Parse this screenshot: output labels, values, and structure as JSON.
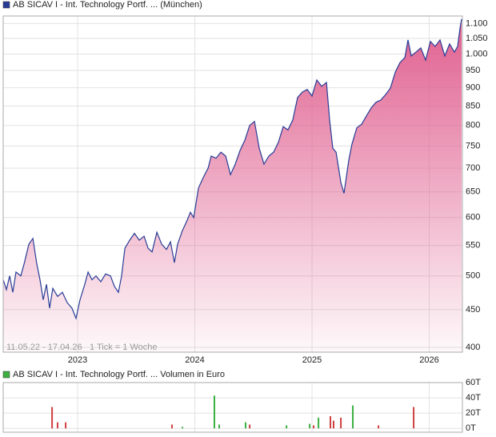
{
  "chart_data": [
    {
      "type": "area",
      "series": [
        {
          "name": "AB SICAV I - Int. Technology Portf. ... (München)",
          "color": "#283c96",
          "fill_color": "#e0608f",
          "values": [
            494,
            479,
            500,
            475,
            506,
            500,
            519,
            552,
            562,
            519,
            494,
            464,
            487,
            452,
            481,
            469,
            475,
            460,
            452,
            438,
            464,
            487,
            506,
            494,
            500,
            491,
            503,
            500,
            484,
            475,
            500,
            545,
            559,
            571,
            559,
            566,
            545,
            539,
            573,
            552,
            543,
            556,
            521,
            552,
            576,
            595,
            610,
            600,
            658,
            680,
            700,
            727,
            722,
            736,
            727,
            686,
            709,
            740,
            764,
            800,
            810,
            745,
            709,
            727,
            736,
            759,
            797,
            789,
            814,
            873,
            888,
            895,
            877,
            922,
            904,
            915,
            814,
            745,
            736,
            669,
            647,
            718,
            755,
            794,
            803,
            824,
            845,
            860,
            866,
            881,
            899,
            945,
            974,
            989,
            1045,
            994,
            1006,
            1019,
            981,
            1040,
            1024,
            1045,
            994,
            1032,
            1006,
            1024,
            1085,
            1115
          ]
        }
      ],
      "x": [
        2022.365,
        2022.392,
        2022.42,
        2022.447,
        2022.474,
        2022.515,
        2022.543,
        2022.584,
        2022.618,
        2022.652,
        2022.679,
        2022.706,
        2022.734,
        2022.761,
        2022.788,
        2022.829,
        2022.87,
        2022.911,
        2022.952,
        2022.986,
        2023.02,
        2023.061,
        2023.089,
        2023.123,
        2023.157,
        2023.198,
        2023.239,
        2023.28,
        2023.314,
        2023.348,
        2023.375,
        2023.403,
        2023.444,
        2023.485,
        2023.526,
        2023.567,
        2023.601,
        2023.635,
        2023.676,
        2023.717,
        2023.758,
        2023.792,
        2023.826,
        2023.853,
        2023.894,
        2023.935,
        2023.962,
        2023.99,
        2024.031,
        2024.072,
        2024.113,
        2024.14,
        2024.181,
        2024.222,
        2024.263,
        2024.304,
        2024.345,
        2024.386,
        2024.427,
        2024.468,
        2024.509,
        2024.549,
        2024.59,
        2024.631,
        2024.672,
        2024.713,
        2024.754,
        2024.795,
        2024.836,
        2024.877,
        2024.918,
        2024.959,
        2025.0,
        2025.041,
        2025.082,
        2025.123,
        2025.15,
        2025.177,
        2025.205,
        2025.246,
        2025.273,
        2025.314,
        2025.341,
        2025.382,
        2025.423,
        2025.464,
        2025.505,
        2025.546,
        2025.587,
        2025.628,
        2025.669,
        2025.71,
        2025.751,
        2025.792,
        2025.819,
        2025.846,
        2025.887,
        2025.928,
        2025.969,
        2026.01,
        2026.051,
        2026.092,
        2026.133,
        2026.174,
        2026.215,
        2026.242,
        2026.263,
        2026.276
      ],
      "xlim": [
        2022.365,
        2026.283
      ],
      "xticks": [
        2023,
        2024,
        2025,
        2026
      ],
      "ylim": [
        394,
        1126
      ],
      "log_scale": true,
      "grid": true,
      "yticks": [
        400,
        450,
        500,
        550,
        600,
        650,
        700,
        750,
        800,
        850,
        900,
        950,
        {
          "value": 1000,
          "label": "1.000"
        },
        {
          "value": 1050,
          "label": "1.050"
        },
        {
          "value": 1100,
          "label": "1.100"
        }
      ],
      "date_range": "11.05.22 - 17.04.26",
      "tick_note": "1 Tick = 1 Woche"
    },
    {
      "type": "bar",
      "series": [
        {
          "name": "AB SICAV I - Int. Technology Portf. ... Volumen in Euro",
          "color": "#3cb043",
          "values": [
            28,
            8,
            8,
            5,
            2,
            43,
            5,
            8,
            5,
            4,
            6,
            4,
            14,
            16,
            10,
            14,
            30,
            4,
            28
          ],
          "colors": [
            "#d04040",
            "#d04040",
            "#d04040",
            "#d04040",
            "#3cb043",
            "#3cb043",
            "#3cb043",
            "#3cb043",
            "#d04040",
            "#3cb043",
            "#3cb043",
            "#d04040",
            "#3cb043",
            "#d04040",
            "#d04040",
            "#d04040",
            "#3cb043",
            "#d04040",
            "#d04040"
          ]
        }
      ],
      "x": [
        2022.782,
        2022.829,
        2022.898,
        2023.805,
        2023.894,
        2024.167,
        2024.208,
        2024.433,
        2024.468,
        2024.782,
        2024.98,
        2025.014,
        2025.055,
        2025.157,
        2025.184,
        2025.246,
        2025.348,
        2025.567,
        2025.867
      ],
      "xlim": [
        2022.365,
        2026.283
      ],
      "xticks": [
        2023,
        2024,
        2025,
        2026
      ],
      "ylim": [
        -5,
        60
      ],
      "grid": true,
      "yticks": [
        {
          "value": 0,
          "label": "0T"
        },
        {
          "value": 20,
          "label": "20T"
        },
        {
          "value": 40,
          "label": "40T"
        },
        {
          "value": 60,
          "label": "60T"
        }
      ]
    }
  ]
}
